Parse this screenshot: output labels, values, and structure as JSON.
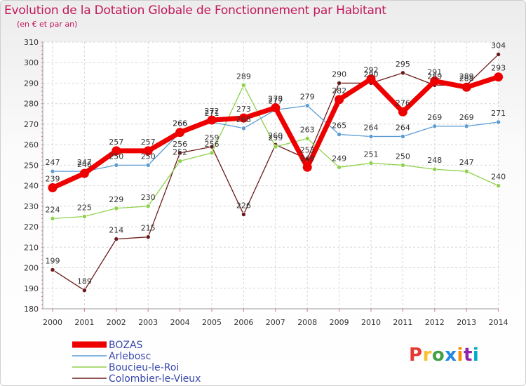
{
  "header": {
    "title": "Evolution de la Dotation Globale de Fonctionnement par Habitant",
    "subtitle": "(en € et par an)"
  },
  "logo_text": "Proxiti",
  "chart_data": {
    "type": "line",
    "title": "Evolution de la Dotation Globale de Fonctionnement par Habitant",
    "subtitle": "(en € et par an)",
    "x": [
      "2000",
      "2001",
      "2002",
      "2003",
      "2004",
      "2005",
      "2006",
      "2007",
      "2008",
      "2009",
      "2010",
      "2011",
      "2012",
      "2013",
      "2014"
    ],
    "ylim": [
      180,
      310
    ],
    "yticks": [
      180,
      190,
      200,
      210,
      220,
      230,
      240,
      250,
      260,
      270,
      280,
      290,
      300,
      310
    ],
    "grid": true,
    "legend": "bottom-left",
    "series": [
      {
        "name": "BOZAS",
        "color": "#ee0000",
        "values": [
          239,
          246,
          257,
          257,
          266,
          272,
          273,
          278,
          249,
          282,
          292,
          276,
          291,
          288,
          293
        ]
      },
      {
        "name": "Arlebosc",
        "color": "#5b9bd5",
        "values": [
          247,
          247,
          250,
          250,
          266,
          271,
          268,
          277,
          279,
          265,
          264,
          264,
          269,
          269,
          271
        ]
      },
      {
        "name": "Boucieu-le-Roi",
        "color": "#8ed14a",
        "values": [
          224,
          225,
          229,
          230,
          252,
          256,
          289,
          259,
          263,
          249,
          251,
          250,
          248,
          247,
          240
        ]
      },
      {
        "name": "Colombier-le-Vieux",
        "color": "#6b1a1a",
        "values": [
          199,
          189,
          214,
          215,
          256,
          259,
          226,
          260,
          253,
          290,
          290,
          295,
          289,
          289,
          304
        ]
      }
    ]
  }
}
